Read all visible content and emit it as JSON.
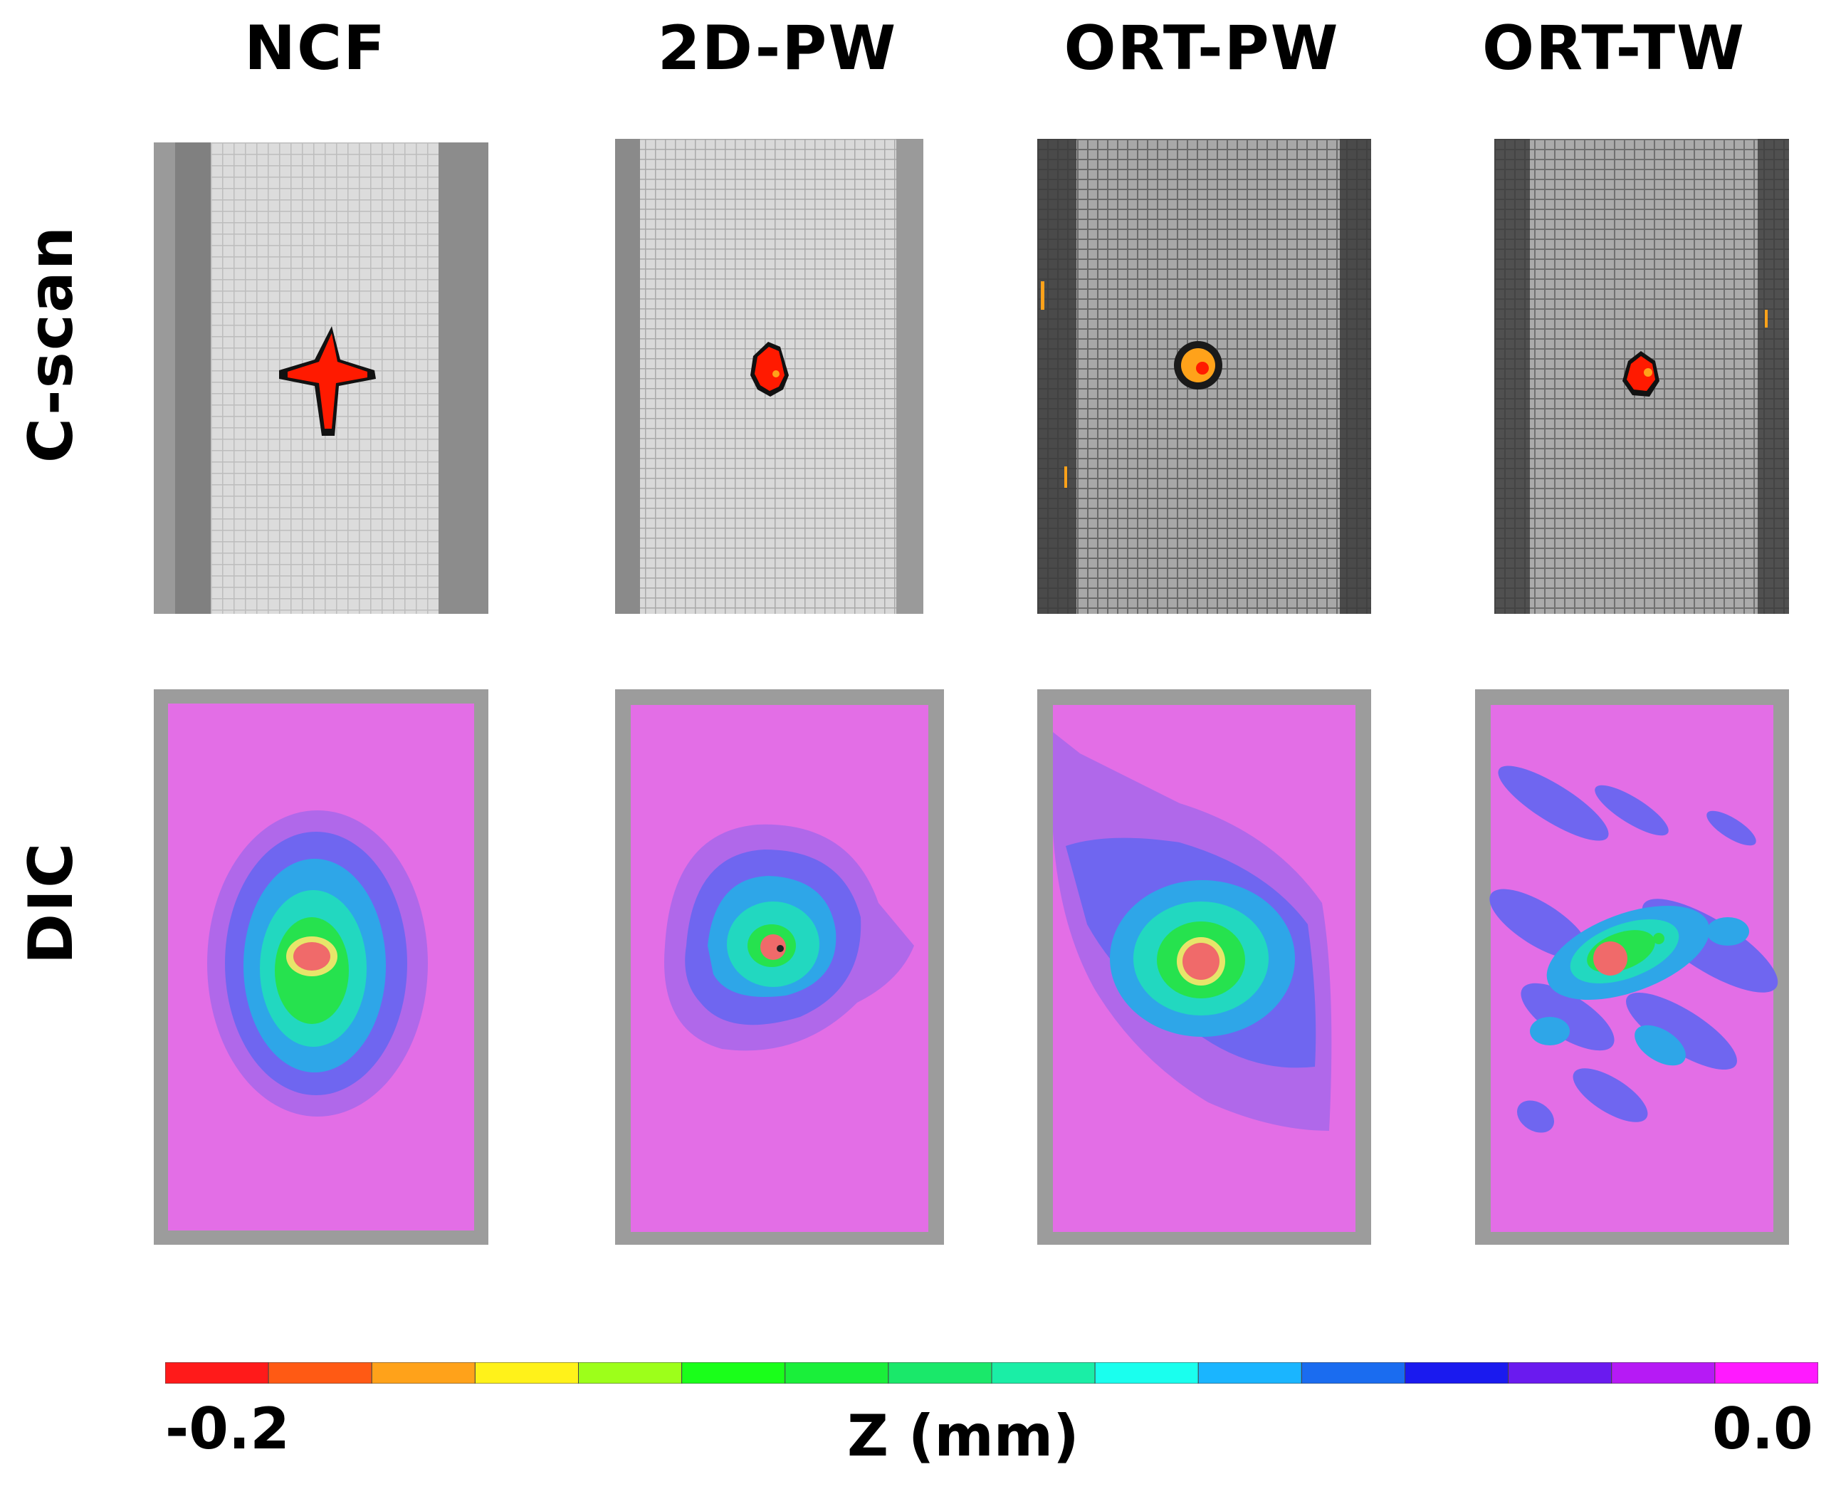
{
  "figure": {
    "columns": [
      "NCF",
      "2D-PW",
      "ORT-PW",
      "ORT-TW"
    ],
    "rows": [
      "C-scan",
      "DIC"
    ],
    "colorbar": {
      "min_label": "-0.2",
      "max_label": "0.0",
      "axis_label": "Z (mm)",
      "colors": [
        "#ff1a1a",
        "#ff5a14",
        "#ffa21a",
        "#fff21a",
        "#9dff1a",
        "#1aff1a",
        "#1aef3a",
        "#1ae86a",
        "#1aeea6",
        "#1affee",
        "#1ab5ff",
        "#1a6cf0",
        "#1a1aef",
        "#6a1aef",
        "#b61af5",
        "#ff1aff"
      ]
    }
  }
}
